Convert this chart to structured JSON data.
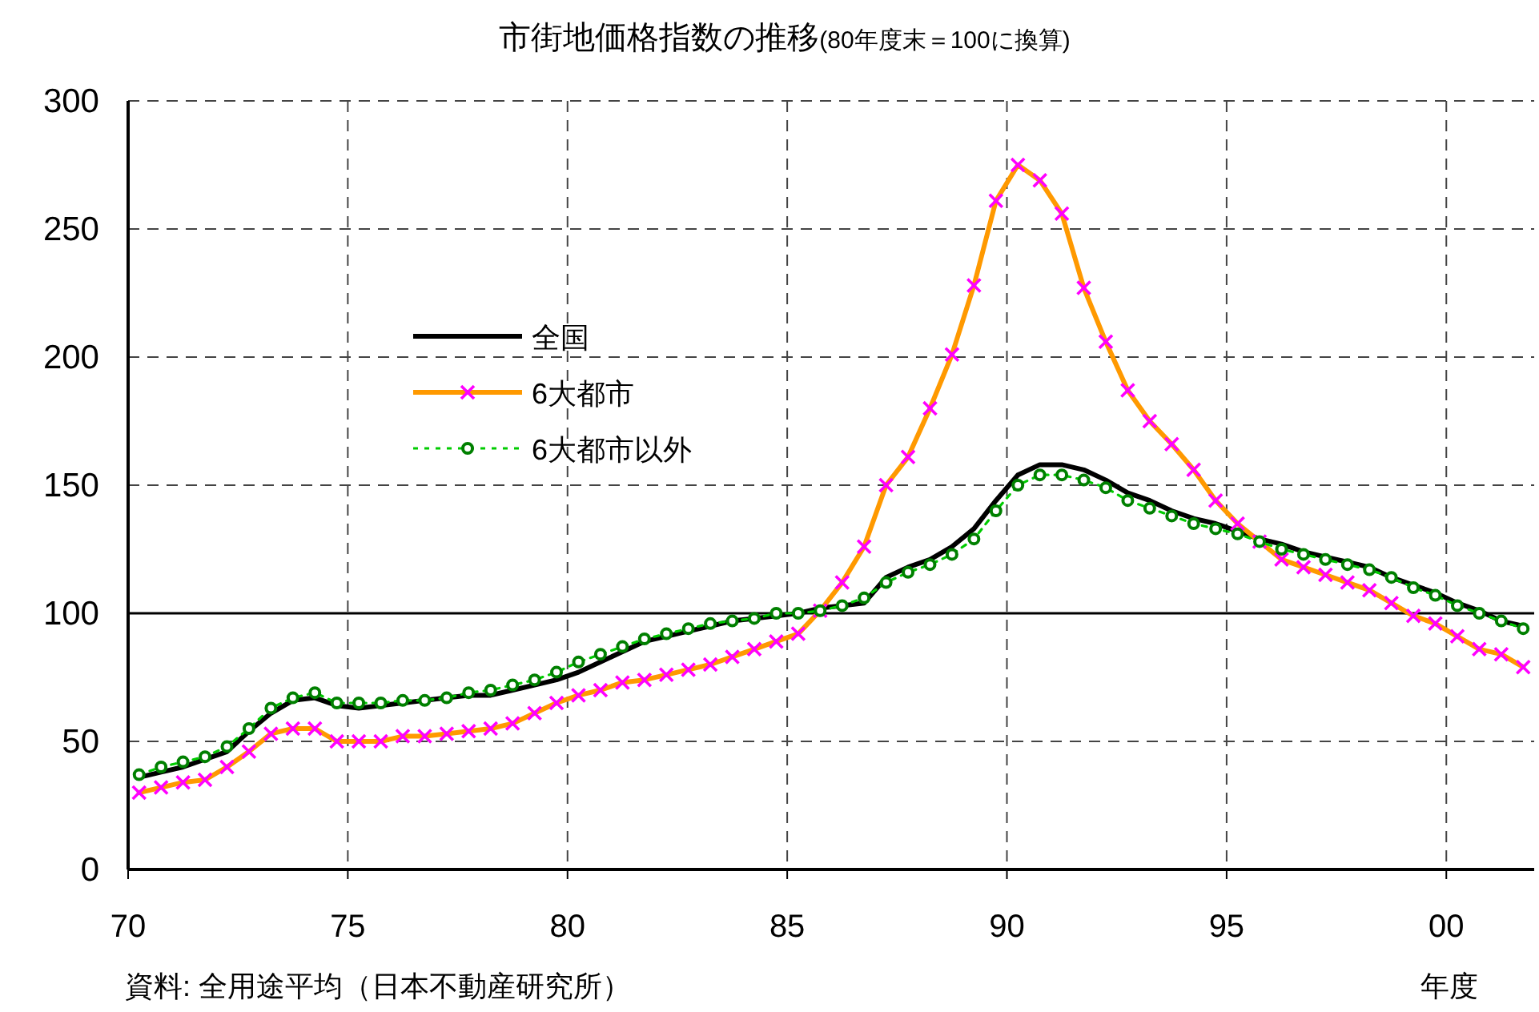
{
  "chart_data": {
    "type": "line",
    "title": "市街地価格指数の推移",
    "subtitle": "(80年度末＝100に換算)",
    "xlabel": "年度",
    "annotations": [
      "資料: 全用途平均（日本不動産研究所）"
    ],
    "x": [
      1970.25,
      1970.75,
      1971.25,
      1971.75,
      1972.25,
      1972.75,
      1973.25,
      1973.75,
      1974.25,
      1974.75,
      1975.25,
      1975.75,
      1976.25,
      1976.75,
      1977.25,
      1977.75,
      1978.25,
      1978.75,
      1979.25,
      1979.75,
      1980.25,
      1980.75,
      1981.25,
      1981.75,
      1982.25,
      1982.75,
      1983.25,
      1983.75,
      1984.25,
      1984.75,
      1985.25,
      1985.75,
      1986.25,
      1986.75,
      1987.25,
      1987.75,
      1988.25,
      1988.75,
      1989.25,
      1989.75,
      1990.25,
      1990.75,
      1991.25,
      1991.75,
      1992.25,
      1992.75,
      1993.25,
      1993.75,
      1994.25,
      1994.75,
      1995.25,
      1995.75,
      1996.25,
      1996.75,
      1997.25,
      1997.75,
      1998.25,
      1998.75,
      1999.25,
      1999.75,
      2000.25,
      2000.75,
      2001.25,
      2001.75
    ],
    "xlim": [
      1970,
      2002
    ],
    "xticks": [
      {
        "value": 1970,
        "label": "70"
      },
      {
        "value": 1975,
        "label": "75"
      },
      {
        "value": 1980,
        "label": "80"
      },
      {
        "value": 1985,
        "label": "85"
      },
      {
        "value": 1990,
        "label": "90"
      },
      {
        "value": 1995,
        "label": "95"
      },
      {
        "value": 2000,
        "label": "00"
      }
    ],
    "ylim": [
      0,
      300
    ],
    "yticks": [
      0,
      50,
      100,
      150,
      200,
      250,
      300
    ],
    "grid": true,
    "legend": "center",
    "ref_lines": [
      {
        "axis": "y",
        "value": 100,
        "color": "#000000",
        "line_style": "solid"
      }
    ],
    "series": [
      {
        "name": "全国",
        "color": "#000000",
        "marker": "none",
        "line_style": "solid",
        "values": [
          36,
          38,
          40,
          43,
          46,
          54,
          61,
          66,
          67,
          64,
          63,
          64,
          65,
          66,
          67,
          68,
          68,
          70,
          72,
          74,
          77,
          81,
          85,
          89,
          91,
          93,
          95,
          97,
          98,
          99,
          100,
          102,
          103,
          104,
          114,
          118,
          121,
          126,
          133,
          144,
          154,
          158,
          158,
          156,
          152,
          147,
          144,
          140,
          137,
          135,
          132,
          129,
          127,
          124,
          122,
          120,
          118,
          114,
          111,
          108,
          104,
          101,
          97,
          95
        ]
      },
      {
        "name": "6大都市",
        "color": "#ff9900",
        "marker": "cross",
        "line_style": "solid",
        "values": [
          30,
          32,
          34,
          35,
          40,
          46,
          53,
          55,
          55,
          50,
          50,
          50,
          52,
          52,
          53,
          54,
          55,
          57,
          61,
          65,
          68,
          70,
          73,
          74,
          76,
          78,
          80,
          83,
          86,
          89,
          92,
          101,
          112,
          126,
          150,
          161,
          180,
          201,
          228,
          261,
          275,
          269,
          256,
          227,
          206,
          187,
          175,
          166,
          156,
          144,
          135,
          128,
          121,
          118,
          115,
          112,
          109,
          104,
          99,
          96,
          91,
          86,
          84,
          79
        ]
      },
      {
        "name": "6大都市以外",
        "color": "#00cc00",
        "marker": "circle",
        "line_style": "dotted",
        "values": [
          37,
          40,
          42,
          44,
          48,
          55,
          63,
          67,
          69,
          65,
          65,
          65,
          66,
          66,
          67,
          69,
          70,
          72,
          74,
          77,
          81,
          84,
          87,
          90,
          92,
          94,
          96,
          97,
          98,
          100,
          100,
          101,
          103,
          106,
          112,
          116,
          119,
          123,
          129,
          140,
          150,
          154,
          154,
          152,
          149,
          144,
          141,
          138,
          135,
          133,
          131,
          128,
          125,
          123,
          121,
          119,
          117,
          114,
          110,
          107,
          103,
          100,
          97,
          94
        ]
      }
    ]
  }
}
